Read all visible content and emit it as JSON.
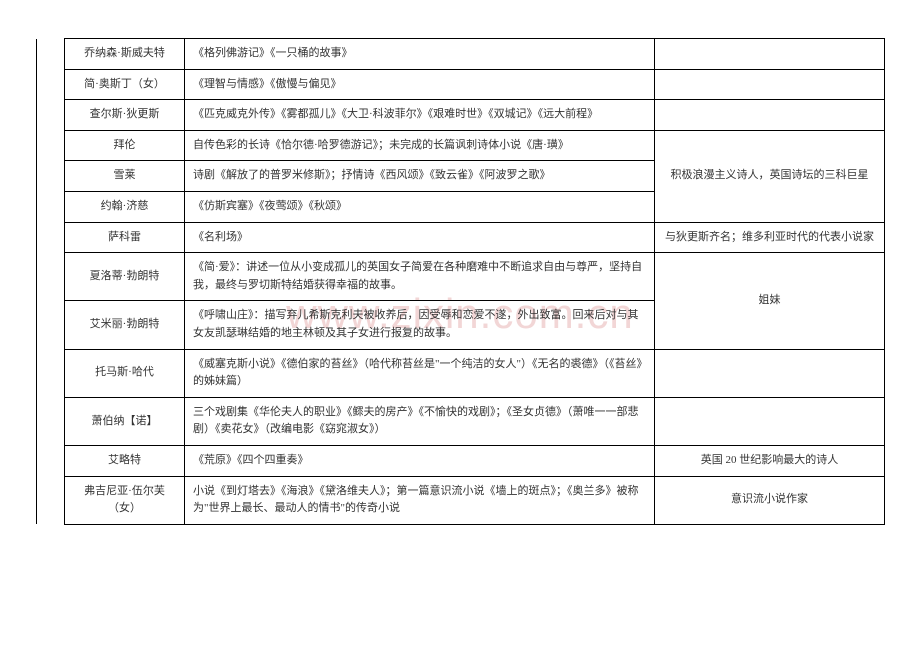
{
  "watermark": "www.zixin.com.cn",
  "rows": [
    {
      "author": "乔纳森·斯威夫特",
      "works": "《格列佛游记》《一只桶的故事》",
      "notes": ""
    },
    {
      "author": "简·奥斯丁（女）",
      "works": "《理智与情感》《傲慢与偏见》",
      "notes": ""
    },
    {
      "author": "查尔斯·狄更斯",
      "works": "《匹克威克外传》《雾都孤儿》《大卫·科波菲尔》《艰难时世》《双城记》《远大前程》",
      "notes": ""
    },
    {
      "author": "拜伦",
      "works": "自传色彩的长诗《恰尔德·哈罗德游记》；未完成的长篇讽刺诗体小说《唐·璜》",
      "notes": ""
    },
    {
      "author": "雪莱",
      "works": "诗剧《解放了的普罗米修斯》；抒情诗《西风颂》《致云雀》《阿波罗之歌》",
      "notes": ""
    },
    {
      "author": "约翰·济慈",
      "works": "《仿斯宾塞》《夜莺颂》《秋颂》",
      "notes": ""
    },
    {
      "author": "萨科雷",
      "works": "《名利场》",
      "notes": "与狄更斯齐名；维多利亚时代的代表小说家"
    },
    {
      "author": "夏洛蒂·勃朗特",
      "works": "《简·爱》：讲述一位从小变成孤儿的英国女子简爱在各种磨难中不断追求自由与尊严，坚持自我，最终与罗切斯特结婚获得幸福的故事。",
      "notes": ""
    },
    {
      "author": "艾米丽·勃朗特",
      "works": "《呼啸山庄》：描写弃儿希斯克利夫被收养后，因受辱和恋爱不遂，外出致富。回来后对与其女友凯瑟琳结婚的地主林顿及其子女进行报复的故事。",
      "notes": ""
    },
    {
      "author": "托马斯·哈代",
      "works": "《威塞克斯小说》《德伯家的苔丝》（哈代称苔丝是\"一个纯洁的女人\"）《无名的裘德》（《苔丝》的姊妹篇）",
      "notes": ""
    },
    {
      "author": "萧伯纳【诺】",
      "works": "三个戏剧集《华伦夫人的职业》《鳏夫的房产》《不愉快的戏剧》；《圣女贞德》（萧唯一一部悲剧）《卖花女》（改编电影《窈窕淑女》）",
      "notes": ""
    },
    {
      "author": "艾略特",
      "works": "《荒原》《四个四重奏》",
      "notes": "英国 20 世纪影响最大的诗人"
    },
    {
      "author": "弗吉尼亚·伍尔芙（女）",
      "works": "小说《到灯塔去》《海浪》《黛洛维夫人》；第一篇意识流小说《墙上的斑点》；《奥兰多》被称为\"世界上最长、最动人的情书\"的传奇小说",
      "notes": "意识流小说作家"
    }
  ],
  "merged_notes": {
    "poets": "积极浪漫主义诗人，英国诗坛的三科巨星",
    "sisters": "姐妹"
  }
}
